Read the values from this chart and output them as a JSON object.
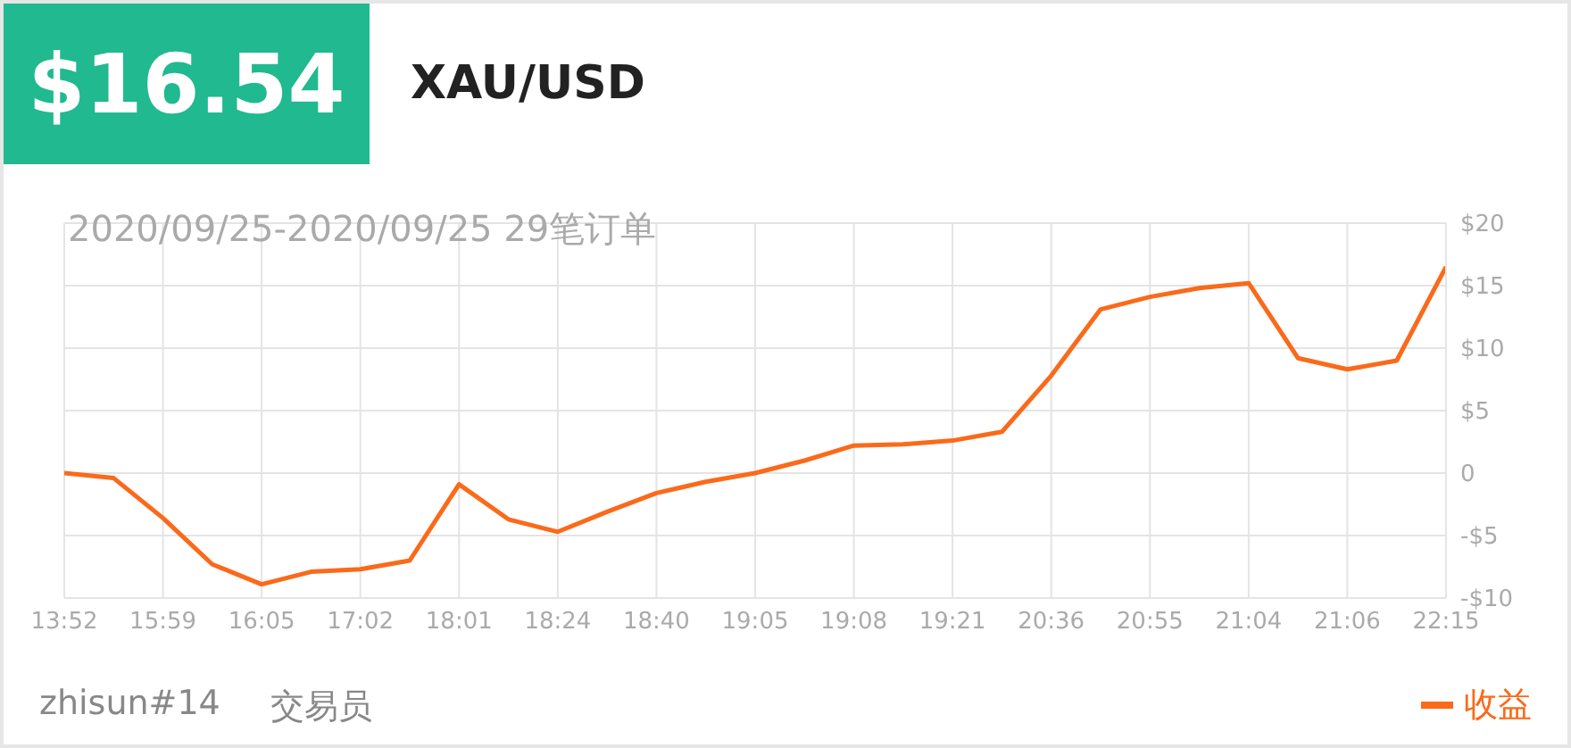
{
  "chart_data": {
    "type": "line",
    "title": "$16.54",
    "subtitle": "XAU/USD",
    "annotations": [
      "2020/09/25-2020/09/25 29笔订单",
      "zhisun#14",
      "交易员"
    ],
    "categories": [
      "13:52",
      null,
      "15:59",
      null,
      "16:05",
      null,
      "17:02",
      null,
      "18:01",
      null,
      "18:24",
      null,
      "18:40",
      null,
      "19:05",
      null,
      "19:08",
      null,
      "19:21",
      null,
      "20:36",
      null,
      "20:55",
      null,
      "21:04",
      null,
      "21:06",
      null,
      "22:15"
    ],
    "series": [
      {
        "name": "收益",
        "color": "#fa6a1a",
        "values": [
          0,
          -0.4,
          -3.6,
          -7.3,
          -8.9,
          -7.9,
          -7.7,
          -7.0,
          -0.9,
          -3.7,
          -4.7,
          -3.1,
          -1.6,
          -0.7,
          0,
          1.0,
          2.2,
          2.3,
          2.6,
          3.3,
          7.8,
          13.1,
          14.1,
          14.8,
          15.2,
          9.2,
          8.3,
          9.0,
          16.5
        ]
      }
    ],
    "ylim": [
      -10,
      20
    ],
    "yticks": [
      {
        "value": -10,
        "label": "-$10"
      },
      {
        "value": -5,
        "label": "-$5"
      },
      0,
      {
        "value": 5,
        "label": "$5"
      },
      {
        "value": 10,
        "label": "$10"
      },
      {
        "value": 15,
        "label": "$15"
      },
      {
        "value": 20,
        "label": "$20"
      }
    ],
    "grid": true,
    "legend": "bottom right",
    "marker": "none",
    "line_style": "solid"
  }
}
